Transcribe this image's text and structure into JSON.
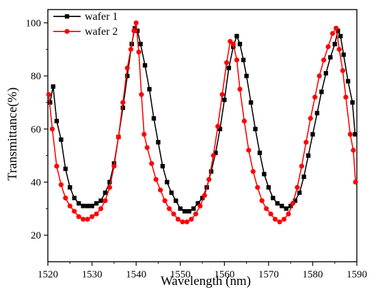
{
  "chart_data": {
    "type": "line",
    "title": "",
    "xlabel": "Wavelength (nm)",
    "ylabel": "Transmittance(%)",
    "xlim": [
      1520,
      1590
    ],
    "ylim": [
      10,
      105
    ],
    "xticks": [
      "1520",
      "1530",
      "1540",
      "1550",
      "1560",
      "1570",
      "1580",
      "1590"
    ],
    "yticks": [
      "20",
      "40",
      "60",
      "80",
      "100"
    ],
    "legend_position": "top-left",
    "grid": false,
    "series": [
      {
        "name": "wafer 1",
        "color": "#000000",
        "marker": "square",
        "points": [
          [
            1520.5,
            70
          ],
          [
            1521.2,
            76
          ],
          [
            1522,
            63
          ],
          [
            1523,
            56
          ],
          [
            1524,
            45
          ],
          [
            1525,
            38
          ],
          [
            1526,
            34
          ],
          [
            1527,
            32
          ],
          [
            1528,
            31
          ],
          [
            1529,
            31
          ],
          [
            1530,
            31
          ],
          [
            1531,
            32
          ],
          [
            1532,
            33
          ],
          [
            1533,
            36
          ],
          [
            1534,
            40
          ],
          [
            1535,
            47
          ],
          [
            1536,
            57
          ],
          [
            1537,
            68
          ],
          [
            1538,
            80
          ],
          [
            1539,
            92
          ],
          [
            1539.7,
            98
          ],
          [
            1540.3,
            97
          ],
          [
            1541,
            92
          ],
          [
            1542,
            84
          ],
          [
            1543,
            75
          ],
          [
            1544,
            64
          ],
          [
            1545,
            55
          ],
          [
            1546,
            46
          ],
          [
            1547,
            40
          ],
          [
            1548,
            36
          ],
          [
            1549,
            33
          ],
          [
            1550,
            30
          ],
          [
            1551,
            29
          ],
          [
            1552,
            29
          ],
          [
            1553,
            30
          ],
          [
            1554,
            32
          ],
          [
            1555,
            34
          ],
          [
            1556,
            38
          ],
          [
            1557,
            44
          ],
          [
            1558,
            51
          ],
          [
            1559,
            60
          ],
          [
            1560,
            71
          ],
          [
            1561,
            83
          ],
          [
            1562,
            91
          ],
          [
            1562.8,
            95
          ],
          [
            1563.5,
            92
          ],
          [
            1564.3,
            86
          ],
          [
            1565,
            80
          ],
          [
            1566,
            70
          ],
          [
            1567,
            60
          ],
          [
            1568,
            51
          ],
          [
            1569,
            43
          ],
          [
            1570,
            38
          ],
          [
            1571,
            34
          ],
          [
            1572,
            32
          ],
          [
            1573,
            31
          ],
          [
            1574,
            30
          ],
          [
            1575,
            31
          ],
          [
            1576,
            33
          ],
          [
            1577,
            36
          ],
          [
            1578,
            42
          ],
          [
            1579,
            50
          ],
          [
            1580,
            58
          ],
          [
            1581,
            66
          ],
          [
            1582,
            74
          ],
          [
            1583,
            81
          ],
          [
            1584,
            87
          ],
          [
            1585,
            92
          ],
          [
            1585.7,
            97
          ],
          [
            1586.3,
            95
          ],
          [
            1587,
            88
          ],
          [
            1588,
            78
          ],
          [
            1589,
            70
          ],
          [
            1589.6,
            58
          ]
        ]
      },
      {
        "name": "wafer 2",
        "color": "#ff0000",
        "marker": "circle",
        "points": [
          [
            1520.2,
            73
          ],
          [
            1521,
            60
          ],
          [
            1522,
            46
          ],
          [
            1523,
            39
          ],
          [
            1524,
            34
          ],
          [
            1525,
            31
          ],
          [
            1526,
            29
          ],
          [
            1527,
            27
          ],
          [
            1528,
            26
          ],
          [
            1529,
            26
          ],
          [
            1530,
            27
          ],
          [
            1531,
            28
          ],
          [
            1532,
            30
          ],
          [
            1533,
            33
          ],
          [
            1534,
            38
          ],
          [
            1535,
            46
          ],
          [
            1536,
            57
          ],
          [
            1537,
            70
          ],
          [
            1538,
            83
          ],
          [
            1538.8,
            90
          ],
          [
            1539.5,
            97
          ],
          [
            1540,
            100
          ],
          [
            1540.6,
            89
          ],
          [
            1541.2,
            73
          ],
          [
            1541.8,
            58
          ],
          [
            1542.5,
            53
          ],
          [
            1543.5,
            47
          ],
          [
            1544.5,
            41
          ],
          [
            1545.5,
            37
          ],
          [
            1546.5,
            33
          ],
          [
            1547.5,
            30
          ],
          [
            1548.5,
            28
          ],
          [
            1549.5,
            26
          ],
          [
            1550.5,
            25
          ],
          [
            1551.5,
            25
          ],
          [
            1552.5,
            26
          ],
          [
            1553.5,
            28
          ],
          [
            1554.5,
            31
          ],
          [
            1555.5,
            35
          ],
          [
            1556.5,
            41
          ],
          [
            1557.5,
            50
          ],
          [
            1558.5,
            61
          ],
          [
            1559.5,
            73
          ],
          [
            1560.5,
            85
          ],
          [
            1561.3,
            93
          ],
          [
            1562,
            92
          ],
          [
            1562.8,
            86
          ],
          [
            1563.5,
            75
          ],
          [
            1564.5,
            63
          ],
          [
            1565.5,
            52
          ],
          [
            1566.5,
            44
          ],
          [
            1567.5,
            38
          ],
          [
            1568.5,
            33
          ],
          [
            1569.5,
            30
          ],
          [
            1570.5,
            28
          ],
          [
            1571.5,
            26
          ],
          [
            1572.5,
            25
          ],
          [
            1573.5,
            26
          ],
          [
            1574.5,
            28
          ],
          [
            1575.5,
            32
          ],
          [
            1576.5,
            38
          ],
          [
            1577.5,
            46
          ],
          [
            1578.5,
            55
          ],
          [
            1579.5,
            64
          ],
          [
            1580.5,
            72
          ],
          [
            1581.5,
            80
          ],
          [
            1582.5,
            86
          ],
          [
            1583.5,
            91
          ],
          [
            1584.5,
            96
          ],
          [
            1585.3,
            98
          ],
          [
            1586,
            90
          ],
          [
            1586.8,
            82
          ],
          [
            1587.5,
            72
          ],
          [
            1588.5,
            58
          ],
          [
            1589.2,
            52
          ],
          [
            1589.7,
            40
          ]
        ]
      }
    ]
  }
}
